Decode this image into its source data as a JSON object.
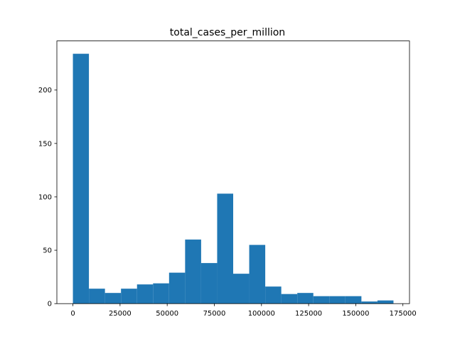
{
  "chart_data": {
    "type": "bar",
    "title": "total_cases_per_million",
    "xlabel": "",
    "ylabel": "",
    "xlim": [
      -8500,
      178500
    ],
    "ylim": [
      0,
      246
    ],
    "grid": false,
    "bar_color": "#1f77b4",
    "bins": [
      {
        "x0": 0,
        "x1": 8500,
        "count": 234
      },
      {
        "x0": 8500,
        "x1": 17000,
        "count": 14
      },
      {
        "x0": 17000,
        "x1": 25500,
        "count": 10
      },
      {
        "x0": 25500,
        "x1": 34000,
        "count": 14
      },
      {
        "x0": 34000,
        "x1": 42500,
        "count": 18
      },
      {
        "x0": 42500,
        "x1": 51000,
        "count": 19
      },
      {
        "x0": 51000,
        "x1": 59500,
        "count": 29
      },
      {
        "x0": 59500,
        "x1": 68000,
        "count": 60
      },
      {
        "x0": 68000,
        "x1": 76500,
        "count": 38
      },
      {
        "x0": 76500,
        "x1": 85000,
        "count": 103
      },
      {
        "x0": 85000,
        "x1": 93500,
        "count": 28
      },
      {
        "x0": 93500,
        "x1": 102000,
        "count": 55
      },
      {
        "x0": 102000,
        "x1": 110500,
        "count": 16
      },
      {
        "x0": 110500,
        "x1": 119000,
        "count": 9
      },
      {
        "x0": 119000,
        "x1": 127500,
        "count": 10
      },
      {
        "x0": 127500,
        "x1": 136000,
        "count": 7
      },
      {
        "x0": 136000,
        "x1": 144500,
        "count": 7
      },
      {
        "x0": 144500,
        "x1": 153000,
        "count": 7
      },
      {
        "x0": 153000,
        "x1": 161500,
        "count": 2
      },
      {
        "x0": 161500,
        "x1": 170000,
        "count": 3
      }
    ],
    "x_ticks": [
      0,
      25000,
      50000,
      75000,
      100000,
      125000,
      150000,
      175000
    ],
    "x_tick_labels": [
      "0",
      "25000",
      "50000",
      "75000",
      "100000",
      "125000",
      "150000",
      "175000"
    ],
    "y_ticks": [
      0,
      50,
      100,
      150,
      200
    ],
    "y_tick_labels": [
      "0",
      "50",
      "100",
      "150",
      "200"
    ]
  }
}
